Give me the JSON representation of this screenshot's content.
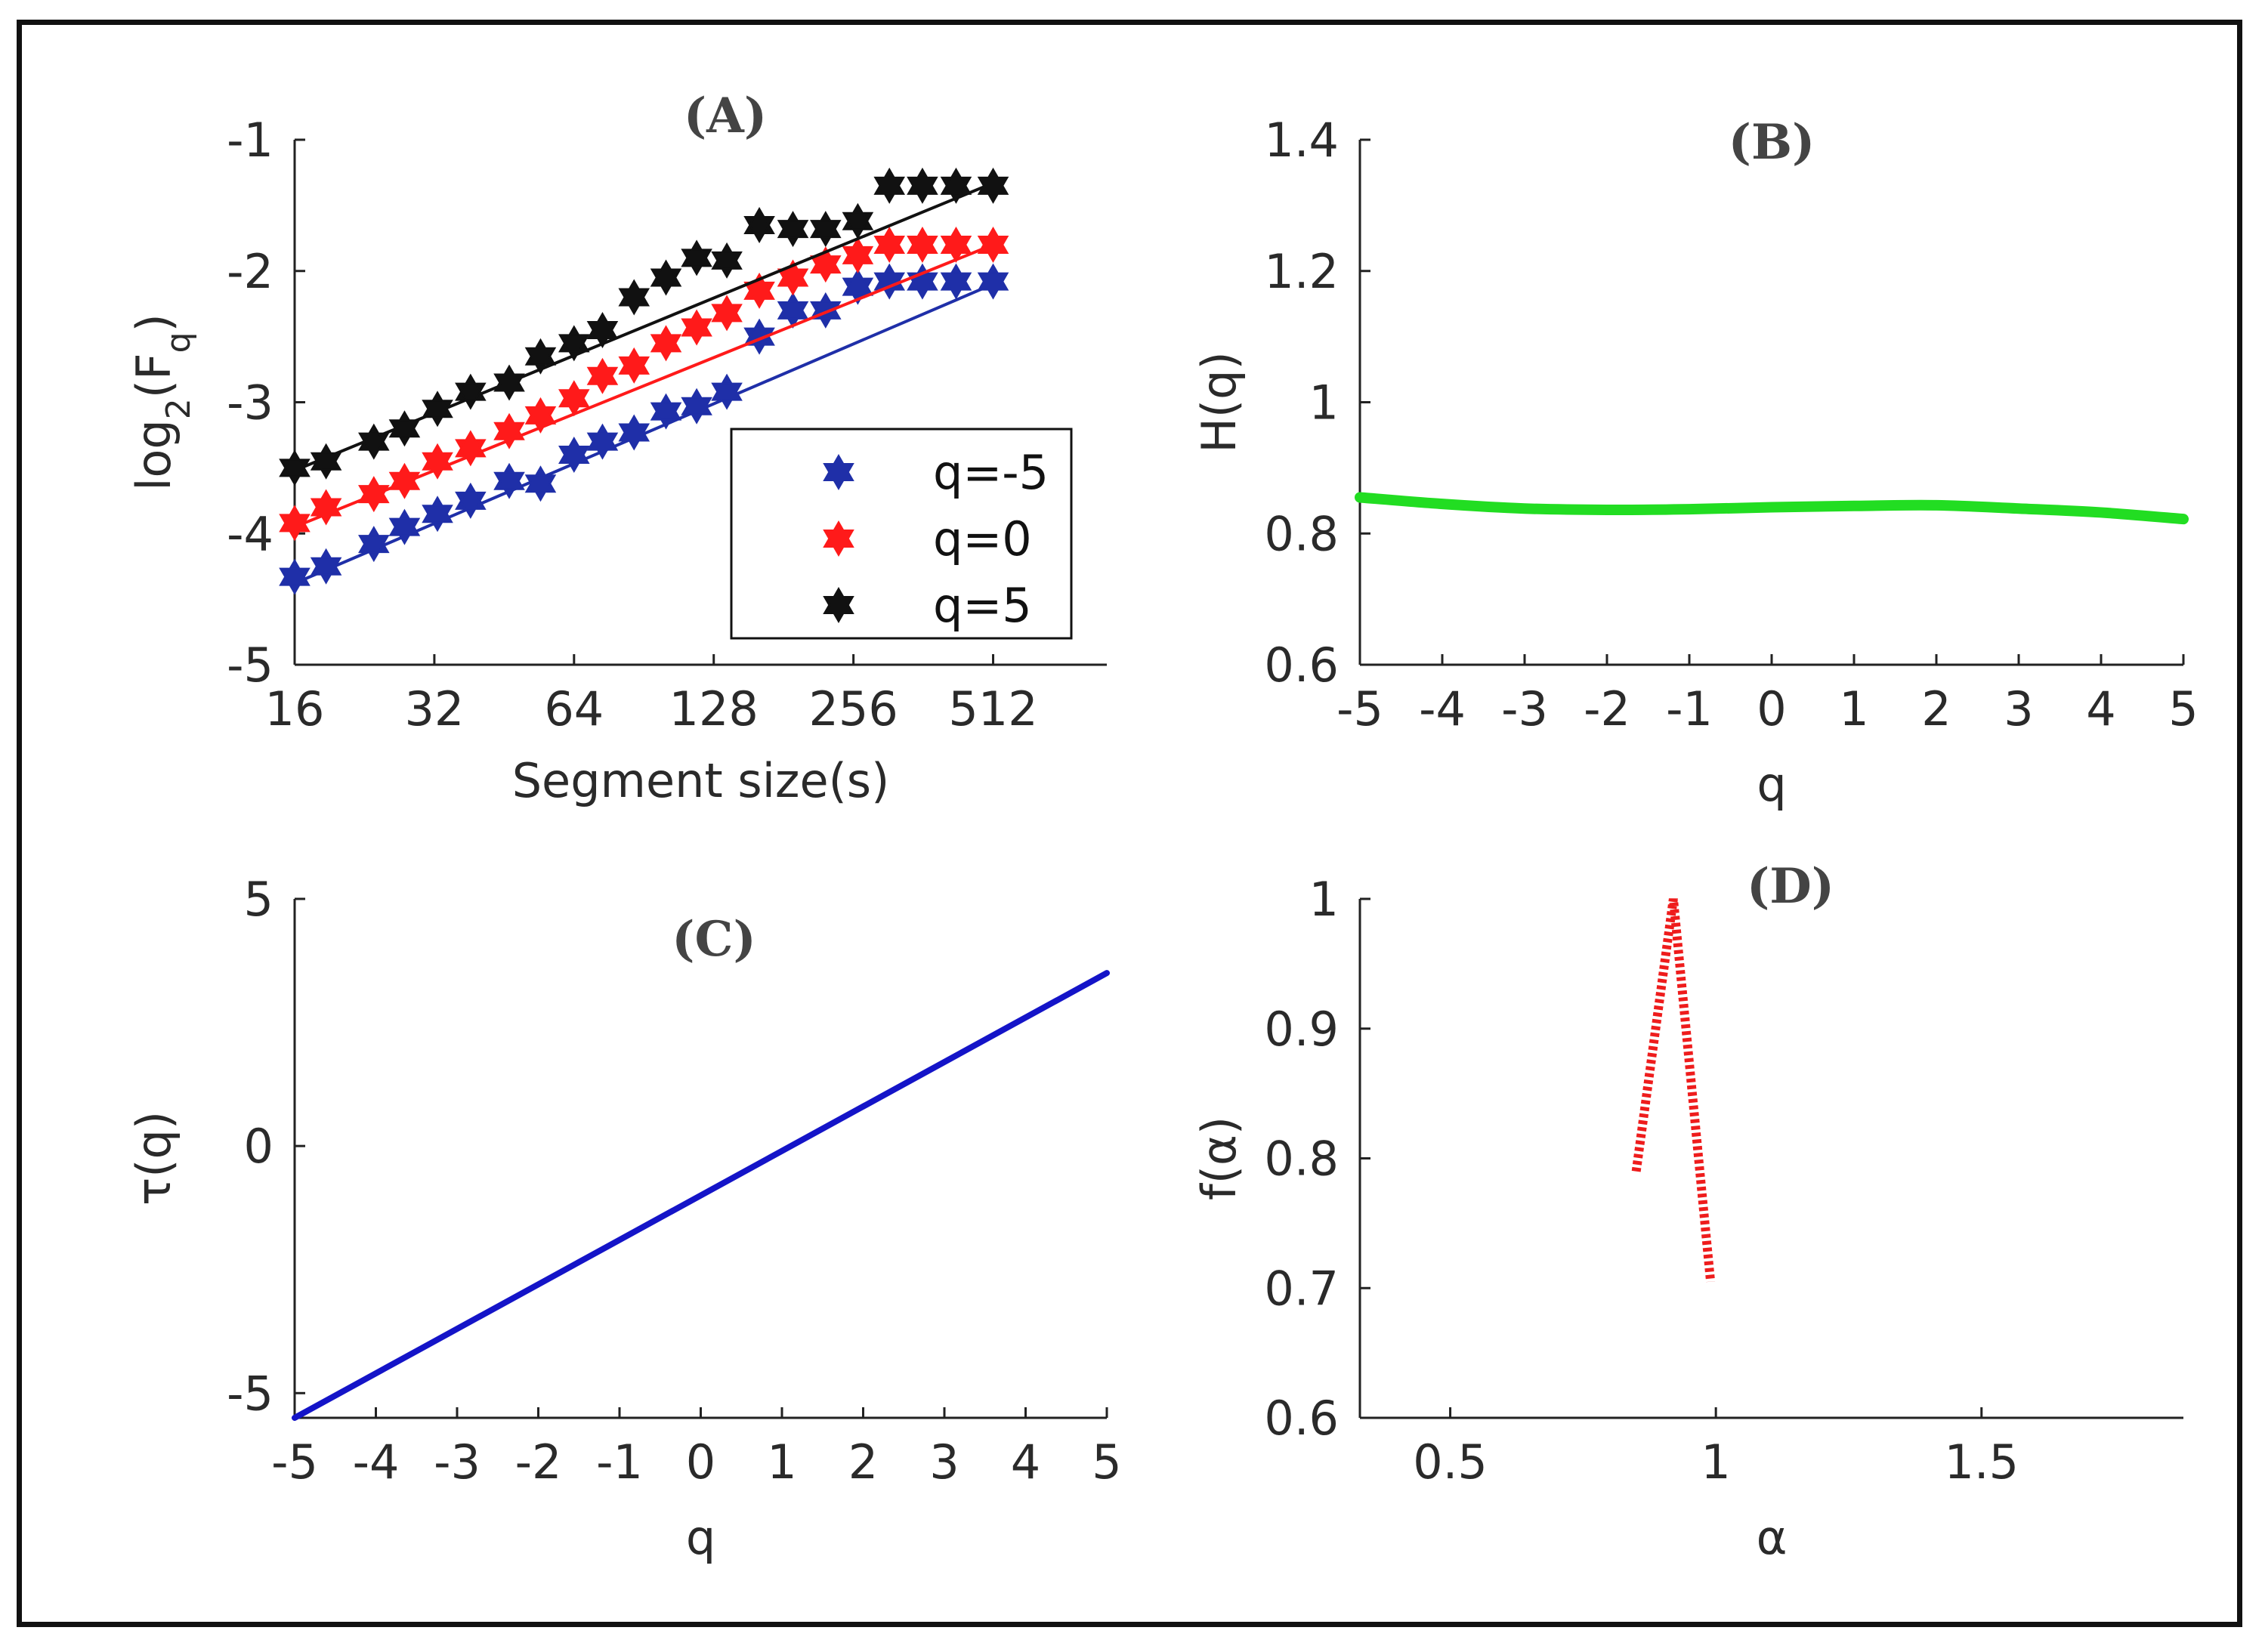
{
  "chart_data": [
    {
      "id": "A",
      "type": "scatter",
      "title": "(A)",
      "xlabel": "Segment size(s)",
      "ylabel": "log2(Fq)",
      "ylabel_parts": {
        "base": "log",
        "sub1": "2",
        "mid": "(F",
        "sub2": "q",
        "end": ")"
      },
      "x_scale": "log2",
      "xlim": [
        16,
        900
      ],
      "ylim": [
        -5,
        -1
      ],
      "xticks": [
        16,
        32,
        64,
        128,
        256,
        512
      ],
      "xtick_labels": [
        "16",
        "32",
        "64",
        "128",
        "256",
        "512"
      ],
      "yticks": [
        -1,
        -2,
        -3,
        -4,
        -5
      ],
      "ytick_labels": [
        "-1",
        "-2",
        "-3",
        "-4",
        "-5"
      ],
      "legend_position": "lower-right",
      "x": [
        16,
        18.7,
        23.7,
        27.6,
        32.5,
        38.3,
        46.4,
        54.2,
        64,
        73.7,
        86.2,
        101,
        117.6,
        136.6,
        160.5,
        189.6,
        223,
        261.6,
        306,
        360.5,
        426,
        512
      ],
      "series": [
        {
          "name": "q=-5",
          "color": "#1f2fa8",
          "values": [
            -4.33,
            -4.25,
            -4.08,
            -3.95,
            -3.85,
            -3.75,
            -3.6,
            -3.62,
            -3.4,
            -3.3,
            -3.23,
            -3.07,
            -3.03,
            -2.92,
            -2.5,
            -2.3,
            -2.3,
            -2.12,
            -2.08,
            -2.08,
            -2.08,
            -2.08
          ],
          "fit": {
            "x": [
              16,
              512
            ],
            "y": [
              -4.38,
              -2.1
            ]
          }
        },
        {
          "name": "q=0",
          "color": "#ff1a1a",
          "values": [
            -3.92,
            -3.8,
            -3.7,
            -3.6,
            -3.45,
            -3.35,
            -3.22,
            -3.1,
            -2.97,
            -2.8,
            -2.72,
            -2.55,
            -2.43,
            -2.32,
            -2.15,
            -2.05,
            -1.95,
            -1.88,
            -1.8,
            -1.8,
            -1.8,
            -1.8
          ],
          "fit": {
            "x": [
              16,
              512
            ],
            "y": [
              -3.95,
              -1.8
            ]
          }
        },
        {
          "name": "q=5",
          "color": "#111111",
          "values": [
            -3.5,
            -3.45,
            -3.3,
            -3.2,
            -3.05,
            -2.92,
            -2.85,
            -2.65,
            -2.55,
            -2.45,
            -2.2,
            -2.05,
            -1.9,
            -1.92,
            -1.65,
            -1.68,
            -1.68,
            -1.62,
            -1.35,
            -1.35,
            -1.35,
            -1.35
          ],
          "fit": {
            "x": [
              16,
              512
            ],
            "y": [
              -3.52,
              -1.33
            ]
          }
        }
      ]
    },
    {
      "id": "B",
      "type": "line",
      "title": "(B)",
      "xlabel": "q",
      "ylabel": "H(q)",
      "xlim": [
        -5,
        5
      ],
      "ylim": [
        0.6,
        1.4
      ],
      "xticks": [
        -5,
        -4,
        -3,
        -2,
        -1,
        0,
        1,
        2,
        3,
        4,
        5
      ],
      "xtick_labels": [
        "-5",
        "-4",
        "-3",
        "-2",
        "-1",
        "0",
        "1",
        "2",
        "3",
        "4",
        "5"
      ],
      "yticks": [
        0.6,
        0.8,
        1,
        1.2,
        1.4
      ],
      "ytick_labels": [
        "0.6",
        "0.8",
        "1",
        "1.2",
        "1.4"
      ],
      "color": "#22dd22",
      "x": [
        -5,
        -4,
        -3,
        -2,
        -1,
        0,
        1,
        2,
        3,
        4,
        5
      ],
      "values": [
        0.855,
        0.845,
        0.838,
        0.836,
        0.837,
        0.84,
        0.842,
        0.843,
        0.838,
        0.832,
        0.822
      ]
    },
    {
      "id": "C",
      "type": "line",
      "title": "(C)",
      "xlabel": "q",
      "ylabel": "τ(q)",
      "xlim": [
        -5,
        5
      ],
      "ylim": [
        -5.5,
        5
      ],
      "xticks": [
        -5,
        -4,
        -3,
        -2,
        -1,
        0,
        1,
        2,
        3,
        4,
        5
      ],
      "xtick_labels": [
        "-5",
        "-4",
        "-3",
        "-2",
        "-1",
        "0",
        "1",
        "2",
        "3",
        "4",
        "5"
      ],
      "yticks": [
        5,
        0,
        -5
      ],
      "ytick_labels": [
        "5",
        "0",
        "-5"
      ],
      "color": "#1414c8",
      "x": [
        -5,
        5
      ],
      "values": [
        -5.5,
        3.5
      ]
    },
    {
      "id": "D",
      "type": "line",
      "title": "(D)",
      "xlabel": "α",
      "ylabel": "f(α)",
      "xlim": [
        0.33,
        1.88
      ],
      "ylim": [
        0.6,
        1
      ],
      "xticks": [
        0.5,
        1,
        1.5
      ],
      "xtick_labels": [
        "0.5",
        "1",
        "1.5"
      ],
      "yticks": [
        1,
        0.9,
        0.8,
        0.7,
        0.6
      ],
      "ytick_labels": [
        "1",
        "0.9",
        "0.8",
        "0.7",
        "0.6"
      ],
      "color": "#ee1c1c",
      "x": [
        0.85,
        0.92,
        0.99
      ],
      "values": [
        0.79,
        1.0,
        0.705
      ]
    }
  ]
}
